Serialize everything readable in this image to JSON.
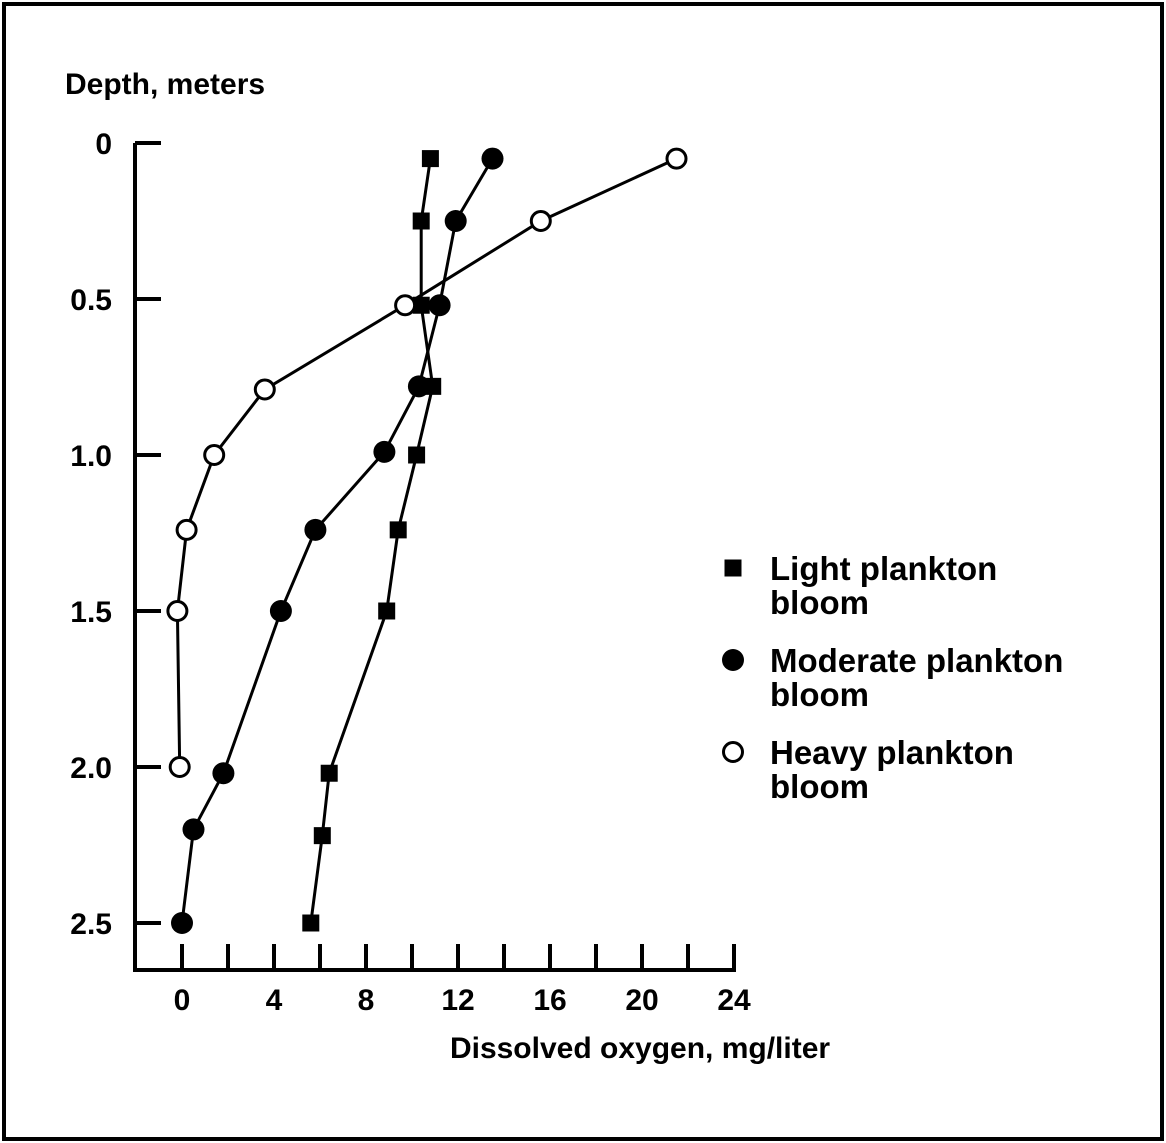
{
  "chart_data": {
    "type": "line",
    "ylabel": "Depth, meters",
    "xlabel": "Dissolved oxygen, mg/liter",
    "xlim": [
      -0.8,
      24
    ],
    "ylim": [
      0,
      2.6
    ],
    "y_inverted": true,
    "x_ticks": [
      0,
      2,
      4,
      6,
      8,
      10,
      12,
      14,
      16,
      18,
      20,
      22,
      24
    ],
    "x_tick_labels": [
      "0",
      "4",
      "8",
      "12",
      "16",
      "20",
      "24"
    ],
    "x_tick_label_values": [
      0,
      4,
      8,
      12,
      16,
      20,
      24
    ],
    "y_ticks": [
      0,
      0.5,
      1.0,
      1.5,
      2.0,
      2.5
    ],
    "y_tick_labels": [
      "0",
      "0.5",
      "1.0",
      "1.5",
      "2.0",
      "2.5"
    ],
    "legend_position": "right",
    "series": [
      {
        "name": "Light plankton bloom",
        "marker": "square",
        "points": [
          [
            10.8,
            0.05
          ],
          [
            10.4,
            0.25
          ],
          [
            10.4,
            0.52
          ],
          [
            10.9,
            0.78
          ],
          [
            10.2,
            1.0
          ],
          [
            9.4,
            1.24
          ],
          [
            8.9,
            1.5
          ],
          [
            6.4,
            2.02
          ],
          [
            6.1,
            2.22
          ],
          [
            5.6,
            2.5
          ]
        ]
      },
      {
        "name": "Moderate plankton bloom",
        "marker": "filled-circle",
        "points": [
          [
            13.5,
            0.05
          ],
          [
            11.9,
            0.25
          ],
          [
            11.2,
            0.52
          ],
          [
            10.3,
            0.78
          ],
          [
            8.8,
            0.99
          ],
          [
            5.8,
            1.24
          ],
          [
            4.3,
            1.5
          ],
          [
            1.8,
            2.02
          ],
          [
            0.5,
            2.2
          ],
          [
            0.0,
            2.5
          ]
        ]
      },
      {
        "name": "Heavy plankton bloom",
        "marker": "open-circle",
        "points": [
          [
            21.5,
            0.05
          ],
          [
            15.6,
            0.25
          ],
          [
            9.7,
            0.52
          ],
          [
            3.6,
            0.79
          ],
          [
            1.4,
            1.0
          ],
          [
            0.2,
            1.24
          ],
          [
            -0.2,
            1.5
          ],
          [
            -0.1,
            2.0
          ]
        ]
      }
    ],
    "legend": [
      {
        "line1": "Light plankton",
        "line2": "bloom",
        "marker": "square"
      },
      {
        "line1": "Moderate plankton",
        "line2": "bloom",
        "marker": "filled-circle"
      },
      {
        "line1": "Heavy plankton",
        "line2": "bloom",
        "marker": "open-circle"
      }
    ]
  }
}
